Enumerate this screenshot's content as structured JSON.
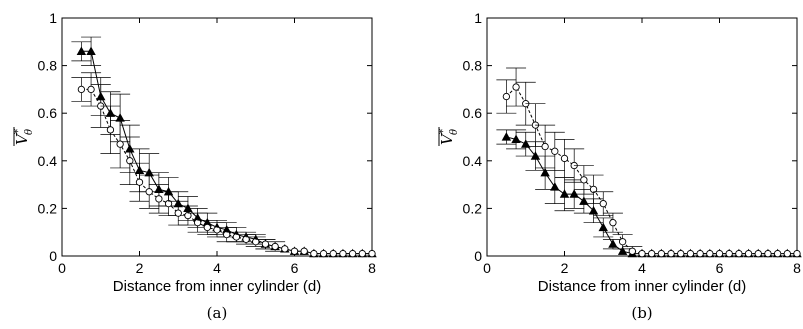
{
  "chart_data": [
    {
      "type": "line",
      "caption": "(a)",
      "xlabel": "Distance from inner cylinder (d)",
      "ylabel": {
        "base": "V",
        "sup": "*",
        "sub": "θ"
      },
      "xlim": [
        0,
        8
      ],
      "ylim": [
        0,
        1
      ],
      "xticks": [
        "0",
        "2",
        "4",
        "6",
        "8"
      ],
      "yticks": [
        "0",
        "0.2",
        "0.4",
        "0.6",
        "0.8",
        "1"
      ],
      "grid": false,
      "series": [
        {
          "marker": "filled-triangle",
          "line": "solid",
          "x": [
            0.5,
            0.75,
            1.0,
            1.25,
            1.5,
            1.75,
            2.0,
            2.25,
            2.5,
            2.75,
            3.0,
            3.25,
            3.5,
            3.75,
            4.0,
            4.25,
            4.5,
            4.75,
            5.0,
            5.25,
            5.5,
            5.75,
            6.0,
            6.25,
            6.5,
            6.75,
            7.0,
            7.25,
            7.5,
            7.75,
            8.0
          ],
          "y": [
            0.86,
            0.86,
            0.67,
            0.6,
            0.58,
            0.45,
            0.36,
            0.35,
            0.28,
            0.27,
            0.22,
            0.2,
            0.16,
            0.14,
            0.12,
            0.11,
            0.09,
            0.08,
            0.07,
            0.05,
            0.04,
            0.03,
            0.02,
            0.02,
            0.01,
            0.01,
            0.01,
            0.01,
            0.01,
            0.01,
            0.01
          ],
          "err": [
            0.04,
            0.06,
            0.08,
            0.09,
            0.1,
            0.1,
            0.09,
            0.08,
            0.07,
            0.06,
            0.05,
            0.05,
            0.04,
            0.04,
            0.03,
            0.03,
            0.03,
            0.02,
            0.02,
            0.02,
            0.02,
            0.01,
            0.01,
            0.01,
            0.01,
            0.01,
            0.01,
            0.01,
            0.01,
            0.01,
            0.01
          ]
        },
        {
          "marker": "open-circle",
          "line": "dashed",
          "x": [
            0.5,
            0.75,
            1.0,
            1.25,
            1.5,
            1.75,
            2.0,
            2.25,
            2.5,
            2.75,
            3.0,
            3.25,
            3.5,
            3.75,
            4.0,
            4.25,
            4.5,
            4.75,
            5.0,
            5.25,
            5.5,
            5.75,
            6.0,
            6.25,
            6.5,
            6.75,
            7.0,
            7.25,
            7.5,
            7.75,
            8.0
          ],
          "y": [
            0.7,
            0.7,
            0.63,
            0.53,
            0.47,
            0.4,
            0.31,
            0.27,
            0.24,
            0.22,
            0.18,
            0.17,
            0.14,
            0.12,
            0.11,
            0.09,
            0.08,
            0.07,
            0.06,
            0.05,
            0.04,
            0.03,
            0.02,
            0.02,
            0.01,
            0.01,
            0.01,
            0.01,
            0.01,
            0.01,
            0.01
          ],
          "err": [
            0.05,
            0.07,
            0.09,
            0.1,
            0.1,
            0.1,
            0.08,
            0.07,
            0.06,
            0.05,
            0.05,
            0.04,
            0.04,
            0.03,
            0.03,
            0.03,
            0.02,
            0.02,
            0.02,
            0.02,
            0.01,
            0.01,
            0.01,
            0.01,
            0.01,
            0.01,
            0.01,
            0.01,
            0.01,
            0.01,
            0.01
          ]
        }
      ]
    },
    {
      "type": "line",
      "caption": "(b)",
      "xlabel": "Distance from inner cylinder (d)",
      "ylabel": {
        "base": "V",
        "sup": "*",
        "sub": "θ"
      },
      "xlim": [
        0,
        8
      ],
      "ylim": [
        0,
        1
      ],
      "xticks": [
        "0",
        "2",
        "4",
        "6",
        "8"
      ],
      "yticks": [
        "0",
        "0.2",
        "0.4",
        "0.6",
        "0.8",
        "1"
      ],
      "grid": false,
      "series": [
        {
          "marker": "filled-triangle",
          "line": "solid",
          "x": [
            0.5,
            0.75,
            1.0,
            1.25,
            1.5,
            1.75,
            2.0,
            2.25,
            2.5,
            2.75,
            3.0,
            3.25,
            3.5,
            3.75,
            4.0,
            4.25,
            4.5,
            4.75,
            5.0,
            5.25,
            5.5,
            5.75,
            6.0,
            6.25,
            6.5,
            6.75,
            7.0,
            7.25,
            7.5,
            7.75,
            8.0
          ],
          "y": [
            0.5,
            0.49,
            0.47,
            0.42,
            0.35,
            0.29,
            0.26,
            0.26,
            0.23,
            0.19,
            0.12,
            0.05,
            0.02,
            0.01,
            0.01,
            0.01,
            0.01,
            0.01,
            0.01,
            0.01,
            0.01,
            0.01,
            0.01,
            0.01,
            0.01,
            0.01,
            0.01,
            0.01,
            0.01,
            0.01,
            0.01
          ],
          "err": [
            0.03,
            0.04,
            0.05,
            0.06,
            0.07,
            0.07,
            0.07,
            0.06,
            0.05,
            0.05,
            0.04,
            0.02,
            0.01,
            0.01,
            0.01,
            0.01,
            0.01,
            0.01,
            0.01,
            0.01,
            0.01,
            0.01,
            0.01,
            0.01,
            0.01,
            0.01,
            0.01,
            0.01,
            0.01,
            0.01,
            0.01
          ]
        },
        {
          "marker": "open-circle",
          "line": "dashed",
          "x": [
            0.5,
            0.75,
            1.0,
            1.25,
            1.5,
            1.75,
            2.0,
            2.25,
            2.5,
            2.75,
            3.0,
            3.25,
            3.5,
            3.75,
            4.0,
            4.25,
            4.5,
            4.75,
            5.0,
            5.25,
            5.5,
            5.75,
            6.0,
            6.25,
            6.5,
            6.75,
            7.0,
            7.25,
            7.5,
            7.75,
            8.0
          ],
          "y": [
            0.67,
            0.71,
            0.64,
            0.55,
            0.46,
            0.44,
            0.41,
            0.38,
            0.32,
            0.28,
            0.22,
            0.14,
            0.06,
            0.02,
            0.01,
            0.01,
            0.01,
            0.01,
            0.01,
            0.01,
            0.01,
            0.01,
            0.01,
            0.01,
            0.01,
            0.01,
            0.01,
            0.01,
            0.01,
            0.01,
            0.01
          ],
          "err": [
            0.07,
            0.08,
            0.09,
            0.09,
            0.09,
            0.08,
            0.08,
            0.07,
            0.06,
            0.06,
            0.05,
            0.04,
            0.03,
            0.02,
            0.01,
            0.01,
            0.01,
            0.01,
            0.01,
            0.01,
            0.01,
            0.01,
            0.01,
            0.01,
            0.01,
            0.01,
            0.01,
            0.01,
            0.01,
            0.01,
            0.01
          ]
        }
      ]
    }
  ]
}
